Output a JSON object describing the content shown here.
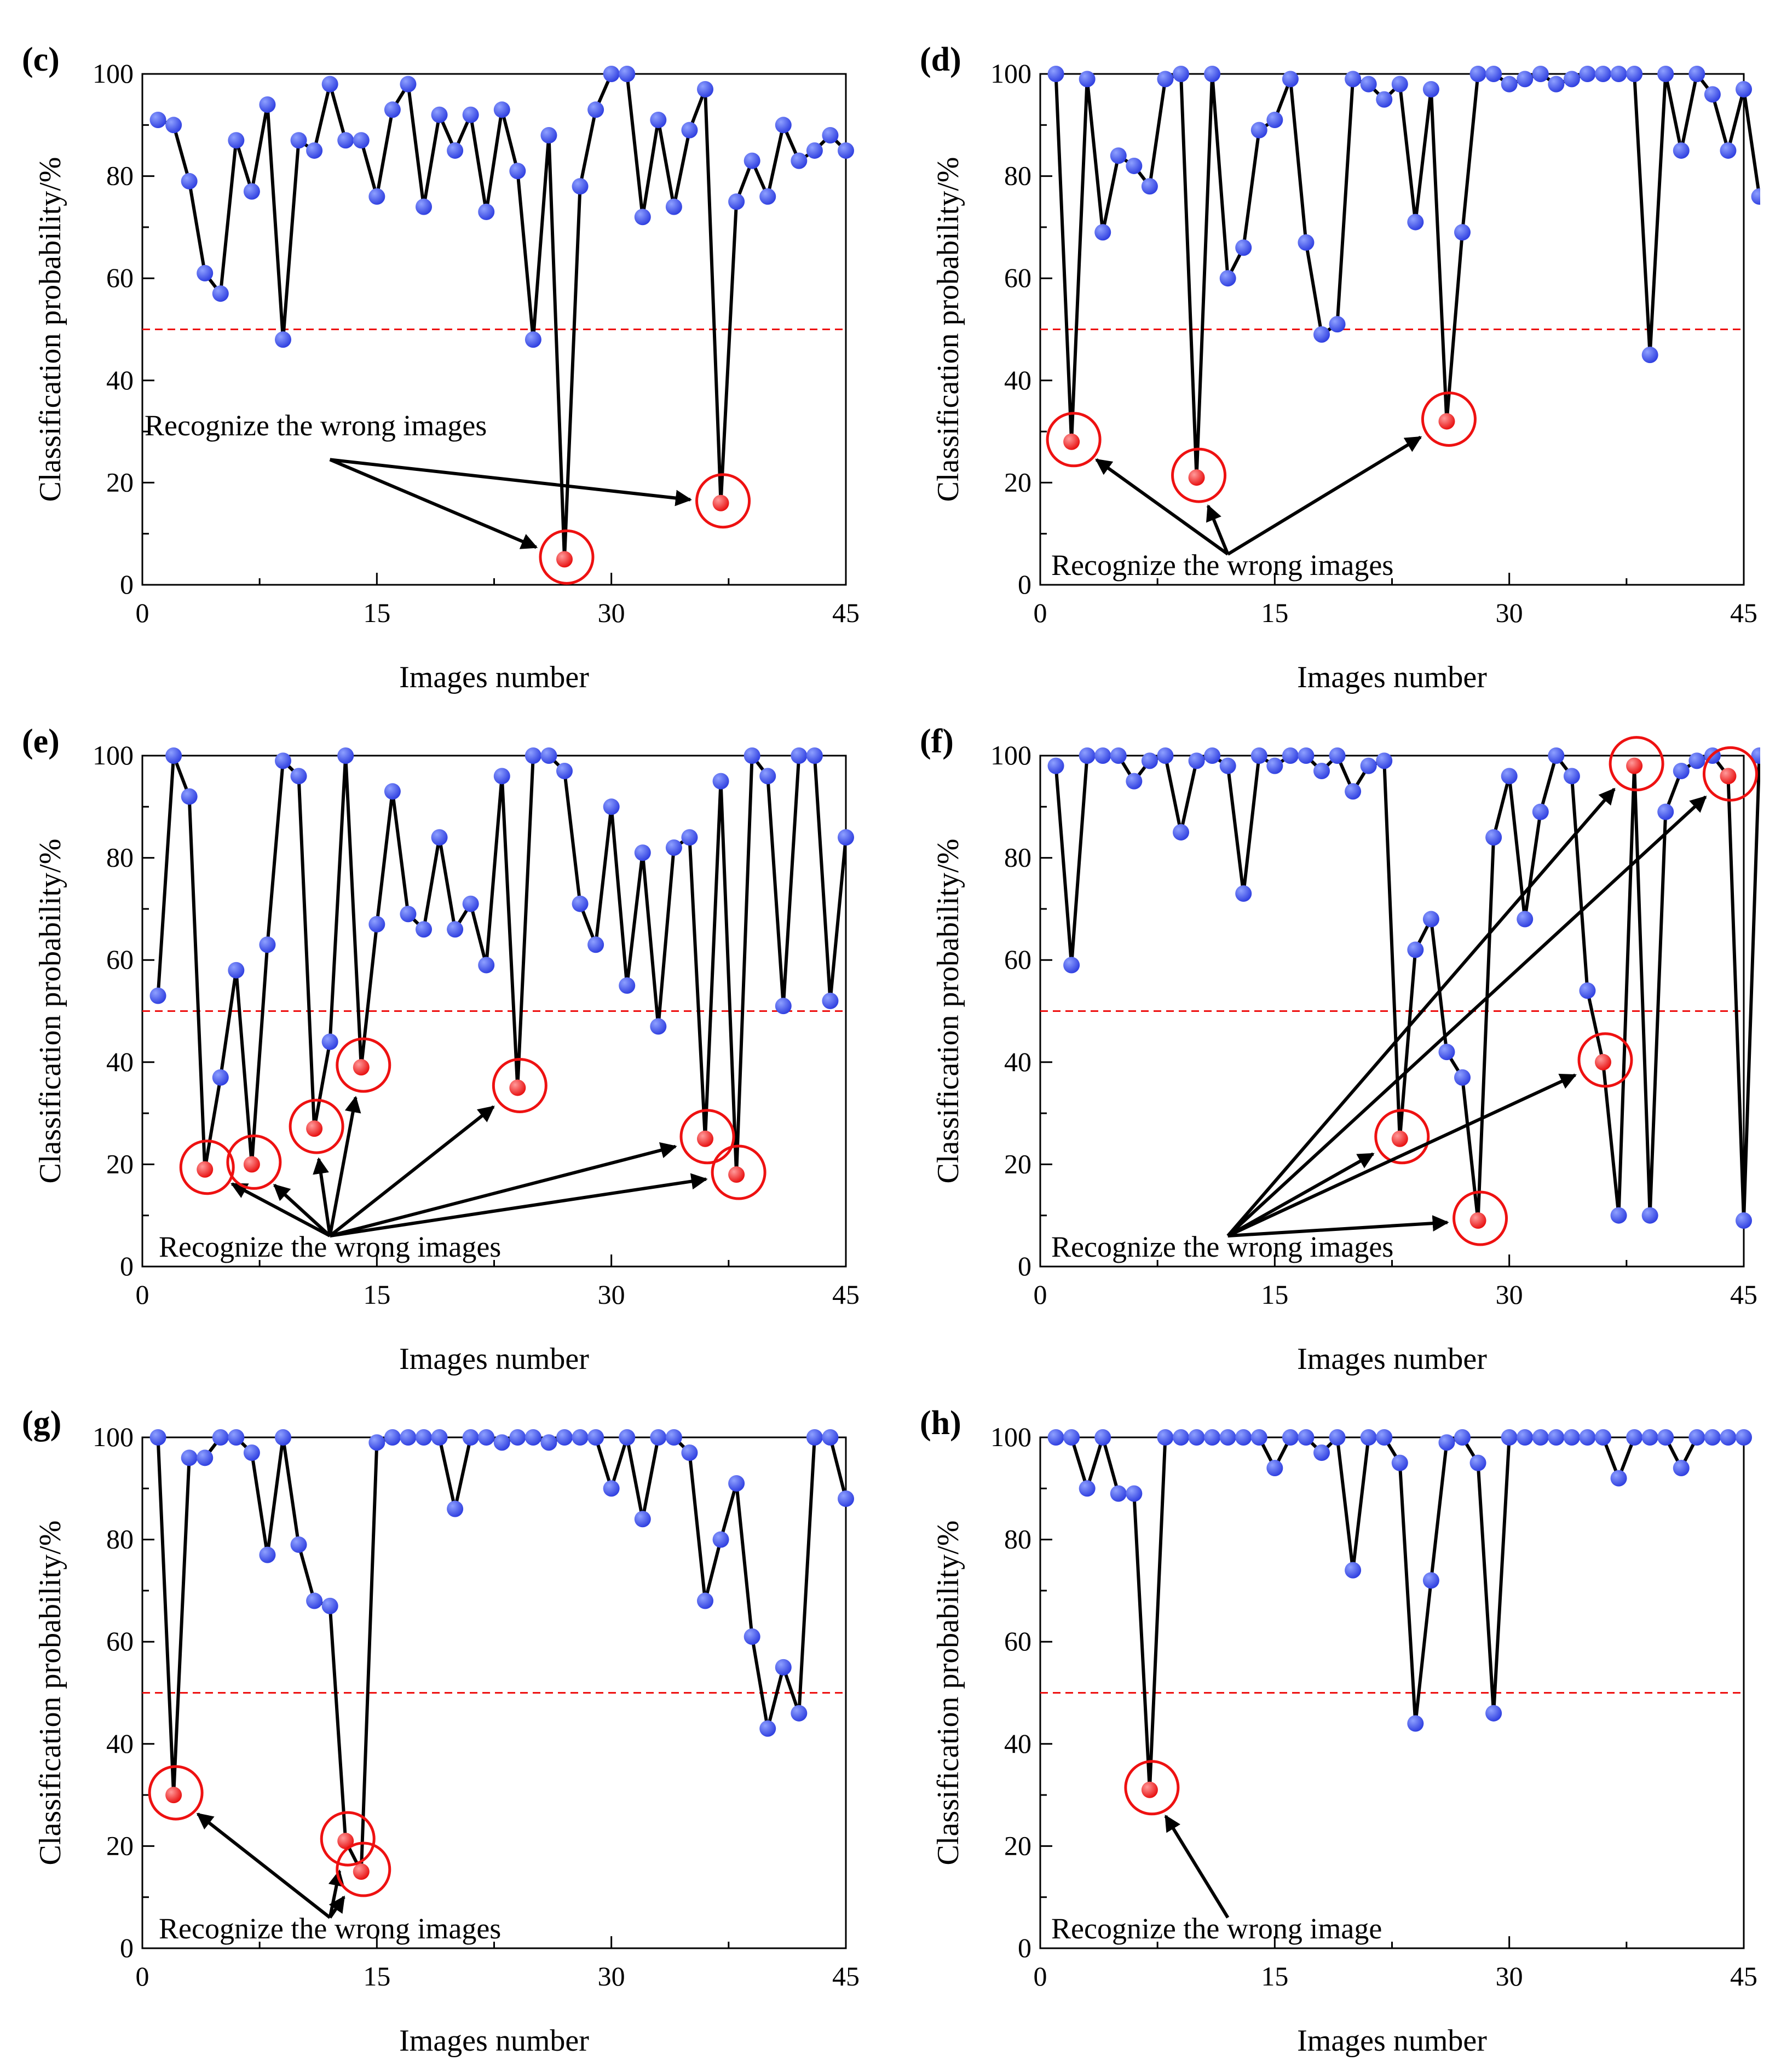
{
  "colors": {
    "line": "#000000",
    "marker": "#2f3fe0",
    "marker_highlight": "#8ea0ff",
    "wrong_marker": "#e81010",
    "wrong_highlight": "#ff9a9a",
    "circle": "#ee1111",
    "threshold": "#ee1111",
    "arrow": "#000000"
  },
  "chart_data": [
    {
      "panel_label": "(c)",
      "type": "scatter",
      "xlabel": "Images number",
      "ylabel": "Classification probability/%",
      "xlim": [
        0,
        45
      ],
      "ylim": [
        0,
        100
      ],
      "xticks": [
        0,
        15,
        30,
        45
      ],
      "yticks": [
        0,
        20,
        40,
        60,
        80,
        100
      ],
      "threshold": 50,
      "annotation": "Recognize the wrong images",
      "values": [
        91,
        90,
        79,
        61,
        57,
        87,
        77,
        94,
        48,
        87,
        85,
        98,
        87,
        87,
        76,
        93,
        98,
        74,
        92,
        85,
        92,
        73,
        93,
        81,
        48,
        88,
        5,
        78,
        93,
        100,
        100,
        72,
        91,
        74,
        89,
        97,
        16,
        75,
        83,
        76,
        90,
        83,
        85,
        88,
        85
      ],
      "wrong": [
        27,
        37
      ],
      "arrow_source": [
        12,
        24.5
      ]
    },
    {
      "panel_label": "(d)",
      "type": "scatter",
      "xlabel": "Images number",
      "ylabel": "Classification probability/%",
      "xlim": [
        0,
        45
      ],
      "ylim": [
        0,
        100
      ],
      "xticks": [
        0,
        15,
        30,
        45
      ],
      "yticks": [
        0,
        20,
        40,
        60,
        80,
        100
      ],
      "threshold": 50,
      "annotation": "Recognize the wrong images",
      "values": [
        100,
        28,
        99,
        69,
        84,
        82,
        78,
        99,
        100,
        21,
        100,
        60,
        66,
        89,
        91,
        99,
        67,
        49,
        51,
        99,
        98,
        95,
        98,
        71,
        97,
        32,
        69,
        100,
        100,
        98,
        99,
        100,
        98,
        99,
        100,
        100,
        100,
        100,
        45,
        100,
        85,
        100,
        96,
        85,
        97,
        76
      ],
      "wrong": [
        2,
        10,
        26
      ],
      "arrow_source": [
        12,
        6
      ]
    },
    {
      "panel_label": "(e)",
      "type": "scatter",
      "xlabel": "Images number",
      "ylabel": "Classification probability/%",
      "xlim": [
        0,
        45
      ],
      "ylim": [
        0,
        100
      ],
      "xticks": [
        0,
        15,
        30,
        45
      ],
      "yticks": [
        0,
        20,
        40,
        60,
        80,
        100
      ],
      "threshold": 50,
      "annotation": "Recognize the wrong images",
      "values": [
        53,
        100,
        92,
        19,
        37,
        58,
        20,
        63,
        99,
        96,
        27,
        44,
        100,
        39,
        67,
        93,
        69,
        66,
        84,
        66,
        71,
        59,
        96,
        35,
        100,
        100,
        97,
        71,
        63,
        90,
        55,
        81,
        47,
        82,
        84,
        25,
        95,
        18,
        100,
        96,
        51,
        100,
        100,
        52,
        84
      ],
      "wrong": [
        4,
        7,
        11,
        14,
        24,
        36,
        38
      ],
      "arrow_source": [
        12,
        6
      ]
    },
    {
      "panel_label": "(f)",
      "type": "scatter",
      "xlabel": "Images number",
      "ylabel": "Classification probability/%",
      "xlim": [
        0,
        45
      ],
      "ylim": [
        0,
        100
      ],
      "xticks": [
        0,
        15,
        30,
        45
      ],
      "yticks": [
        0,
        20,
        40,
        60,
        80,
        100
      ],
      "threshold": 50,
      "annotation": "Recognize the wrong images",
      "values": [
        98,
        59,
        100,
        100,
        100,
        95,
        99,
        100,
        85,
        99,
        100,
        98,
        73,
        100,
        98,
        100,
        100,
        97,
        100,
        93,
        98,
        99,
        25,
        62,
        68,
        42,
        37,
        9,
        84,
        96,
        68,
        89,
        100,
        96,
        54,
        40,
        10,
        98,
        10,
        89,
        97,
        99,
        100,
        96,
        9,
        100
      ],
      "wrong": [
        23,
        28,
        36,
        38,
        44
      ],
      "arrow_source": [
        12,
        6
      ]
    },
    {
      "panel_label": "(g)",
      "type": "scatter",
      "xlabel": "Images number",
      "ylabel": "Classification probability/%",
      "xlim": [
        0,
        45
      ],
      "ylim": [
        0,
        100
      ],
      "xticks": [
        0,
        15,
        30,
        45
      ],
      "yticks": [
        0,
        20,
        40,
        60,
        80,
        100
      ],
      "threshold": 50,
      "annotation": "Recognize the wrong images",
      "values": [
        100,
        30,
        96,
        96,
        100,
        100,
        97,
        77,
        100,
        79,
        68,
        67,
        21,
        15,
        99,
        100,
        100,
        100,
        100,
        86,
        100,
        100,
        99,
        100,
        100,
        99,
        100,
        100,
        100,
        90,
        100,
        84,
        100,
        100,
        97,
        68,
        80,
        91,
        61,
        43,
        55,
        46,
        100,
        100,
        88
      ],
      "wrong": [
        2,
        13,
        14
      ],
      "arrow_source": [
        12,
        6
      ]
    },
    {
      "panel_label": "(h)",
      "type": "scatter",
      "xlabel": "Images number",
      "ylabel": "Classification probability/%",
      "xlim": [
        0,
        45
      ],
      "ylim": [
        0,
        100
      ],
      "xticks": [
        0,
        15,
        30,
        45
      ],
      "yticks": [
        0,
        20,
        40,
        60,
        80,
        100
      ],
      "threshold": 50,
      "annotation": "Recognize the wrong image",
      "values": [
        100,
        100,
        90,
        100,
        89,
        89,
        31,
        100,
        100,
        100,
        100,
        100,
        100,
        100,
        94,
        100,
        100,
        97,
        100,
        74,
        100,
        100,
        95,
        44,
        72,
        99,
        100,
        95,
        46,
        100,
        100,
        100,
        100,
        100,
        100,
        100,
        92,
        100,
        100,
        100,
        94,
        100,
        100,
        100,
        100
      ],
      "wrong": [
        7
      ],
      "arrow_source": [
        12,
        6
      ]
    }
  ]
}
